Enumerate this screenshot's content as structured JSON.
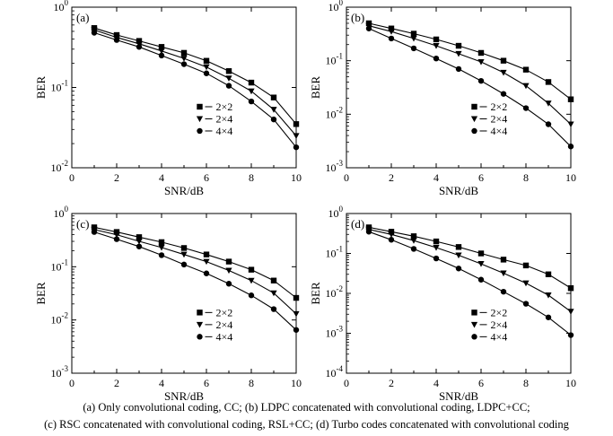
{
  "caption": {
    "line1": "(a)  Only convolutional coding, CC; (b) LDPC concatenated with convolutional coding, LDPC+CC;",
    "line2": "(c) RSC concatenated with convolutional coding, RSL+CC; (d) Turbo codes concatenated with convolutional coding"
  },
  "chart_data": [
    {
      "type": "line",
      "panel_label": "(a)",
      "xlabel": "SNR/dB",
      "ylabel": "BER",
      "xlim": [
        0,
        10
      ],
      "xticks": [
        "0",
        "2",
        "4",
        "6",
        "8",
        "10"
      ],
      "ylim": [
        0.01,
        1
      ],
      "y_scale": "log",
      "yticks": [
        {
          "base": "10",
          "exp": "-2"
        },
        {
          "base": "10",
          "exp": "-1"
        },
        {
          "base": "10",
          "exp": "0"
        }
      ],
      "legend_position": "bottom-left",
      "x": [
        1,
        2,
        3,
        4,
        5,
        6,
        7,
        8,
        9,
        10
      ],
      "series": [
        {
          "name": "2×2",
          "marker": "square",
          "values": [
            0.55,
            0.45,
            0.38,
            0.32,
            0.27,
            0.215,
            0.16,
            0.115,
            0.075,
            0.035
          ]
        },
        {
          "name": "2×4",
          "marker": "triangle-down",
          "values": [
            0.52,
            0.42,
            0.35,
            0.285,
            0.23,
            0.18,
            0.13,
            0.09,
            0.053,
            0.025
          ]
        },
        {
          "name": "4×4",
          "marker": "circle",
          "values": [
            0.48,
            0.39,
            0.32,
            0.25,
            0.195,
            0.15,
            0.105,
            0.067,
            0.04,
            0.018
          ]
        }
      ]
    },
    {
      "type": "line",
      "panel_label": "(b)",
      "xlabel": "SNR/dB",
      "ylabel": "BER",
      "xlim": [
        0,
        10
      ],
      "xticks": [
        "0",
        "2",
        "4",
        "6",
        "8",
        "10"
      ],
      "ylim": [
        0.001,
        1
      ],
      "y_scale": "log",
      "yticks": [
        {
          "base": "10",
          "exp": "-3"
        },
        {
          "base": "10",
          "exp": "-2"
        },
        {
          "base": "10",
          "exp": "0"
        },
        {
          "base": "10",
          "exp": "-1"
        }
      ],
      "legend_position": "bottom-left",
      "x": [
        1,
        2,
        3,
        4,
        5,
        6,
        7,
        8,
        9,
        10
      ],
      "series": [
        {
          "name": "2×2",
          "marker": "square",
          "values": [
            0.5,
            0.4,
            0.32,
            0.25,
            0.19,
            0.14,
            0.1,
            0.068,
            0.04,
            0.019
          ]
        },
        {
          "name": "2×4",
          "marker": "triangle-down",
          "values": [
            0.45,
            0.35,
            0.26,
            0.19,
            0.135,
            0.095,
            0.06,
            0.034,
            0.016,
            0.0065
          ]
        },
        {
          "name": "4×4",
          "marker": "circle",
          "values": [
            0.4,
            0.26,
            0.17,
            0.11,
            0.07,
            0.042,
            0.024,
            0.013,
            0.0065,
            0.0025
          ]
        }
      ]
    },
    {
      "type": "line",
      "panel_label": "(c)",
      "xlabel": "SNR/dB",
      "ylabel": "BER",
      "xlim": [
        0,
        10
      ],
      "xticks": [
        "0",
        "2",
        "4",
        "6",
        "8",
        "10"
      ],
      "ylim": [
        0.001,
        1
      ],
      "y_scale": "log",
      "yticks": [
        {
          "base": "10",
          "exp": "-3"
        },
        {
          "base": "10",
          "exp": "-2"
        },
        {
          "base": "10",
          "exp": "-1"
        },
        {
          "base": "10",
          "exp": "0"
        }
      ],
      "legend_position": "bottom-left",
      "x": [
        1,
        2,
        3,
        4,
        5,
        6,
        7,
        8,
        9,
        10
      ],
      "series": [
        {
          "name": "2×2",
          "marker": "square",
          "values": [
            0.55,
            0.45,
            0.36,
            0.29,
            0.225,
            0.17,
            0.125,
            0.088,
            0.055,
            0.026
          ]
        },
        {
          "name": "2×4",
          "marker": "triangle-down",
          "values": [
            0.5,
            0.4,
            0.3,
            0.23,
            0.17,
            0.125,
            0.085,
            0.055,
            0.032,
            0.013
          ]
        },
        {
          "name": "4×4",
          "marker": "circle",
          "values": [
            0.45,
            0.33,
            0.24,
            0.165,
            0.11,
            0.075,
            0.048,
            0.029,
            0.016,
            0.0065
          ]
        }
      ]
    },
    {
      "type": "line",
      "panel_label": "(d)",
      "xlabel": "SNR/dB",
      "ylabel": "BER",
      "xlim": [
        0,
        10
      ],
      "xticks": [
        "0",
        "2",
        "4",
        "6",
        "8",
        "10"
      ],
      "ylim": [
        0.0001,
        1
      ],
      "y_scale": "log",
      "yticks": [
        {
          "base": "10",
          "exp": "-4"
        },
        {
          "base": "10",
          "exp": "-3"
        },
        {
          "base": "10",
          "exp": "-2"
        },
        {
          "base": "10",
          "exp": "-1"
        },
        {
          "base": "10",
          "exp": "0"
        }
      ],
      "legend_position": "bottom-left",
      "x": [
        1,
        2,
        3,
        4,
        5,
        6,
        7,
        8,
        9,
        10
      ],
      "series": [
        {
          "name": "2×2",
          "marker": "square",
          "values": [
            0.45,
            0.35,
            0.27,
            0.2,
            0.145,
            0.1,
            0.07,
            0.05,
            0.03,
            0.0135
          ]
        },
        {
          "name": "2×4",
          "marker": "triangle-down",
          "values": [
            0.4,
            0.3,
            0.21,
            0.14,
            0.09,
            0.055,
            0.032,
            0.018,
            0.009,
            0.0035
          ]
        },
        {
          "name": "4×4",
          "marker": "circle",
          "values": [
            0.35,
            0.22,
            0.13,
            0.075,
            0.042,
            0.022,
            0.011,
            0.0055,
            0.0025,
            0.0009
          ]
        }
      ]
    }
  ]
}
